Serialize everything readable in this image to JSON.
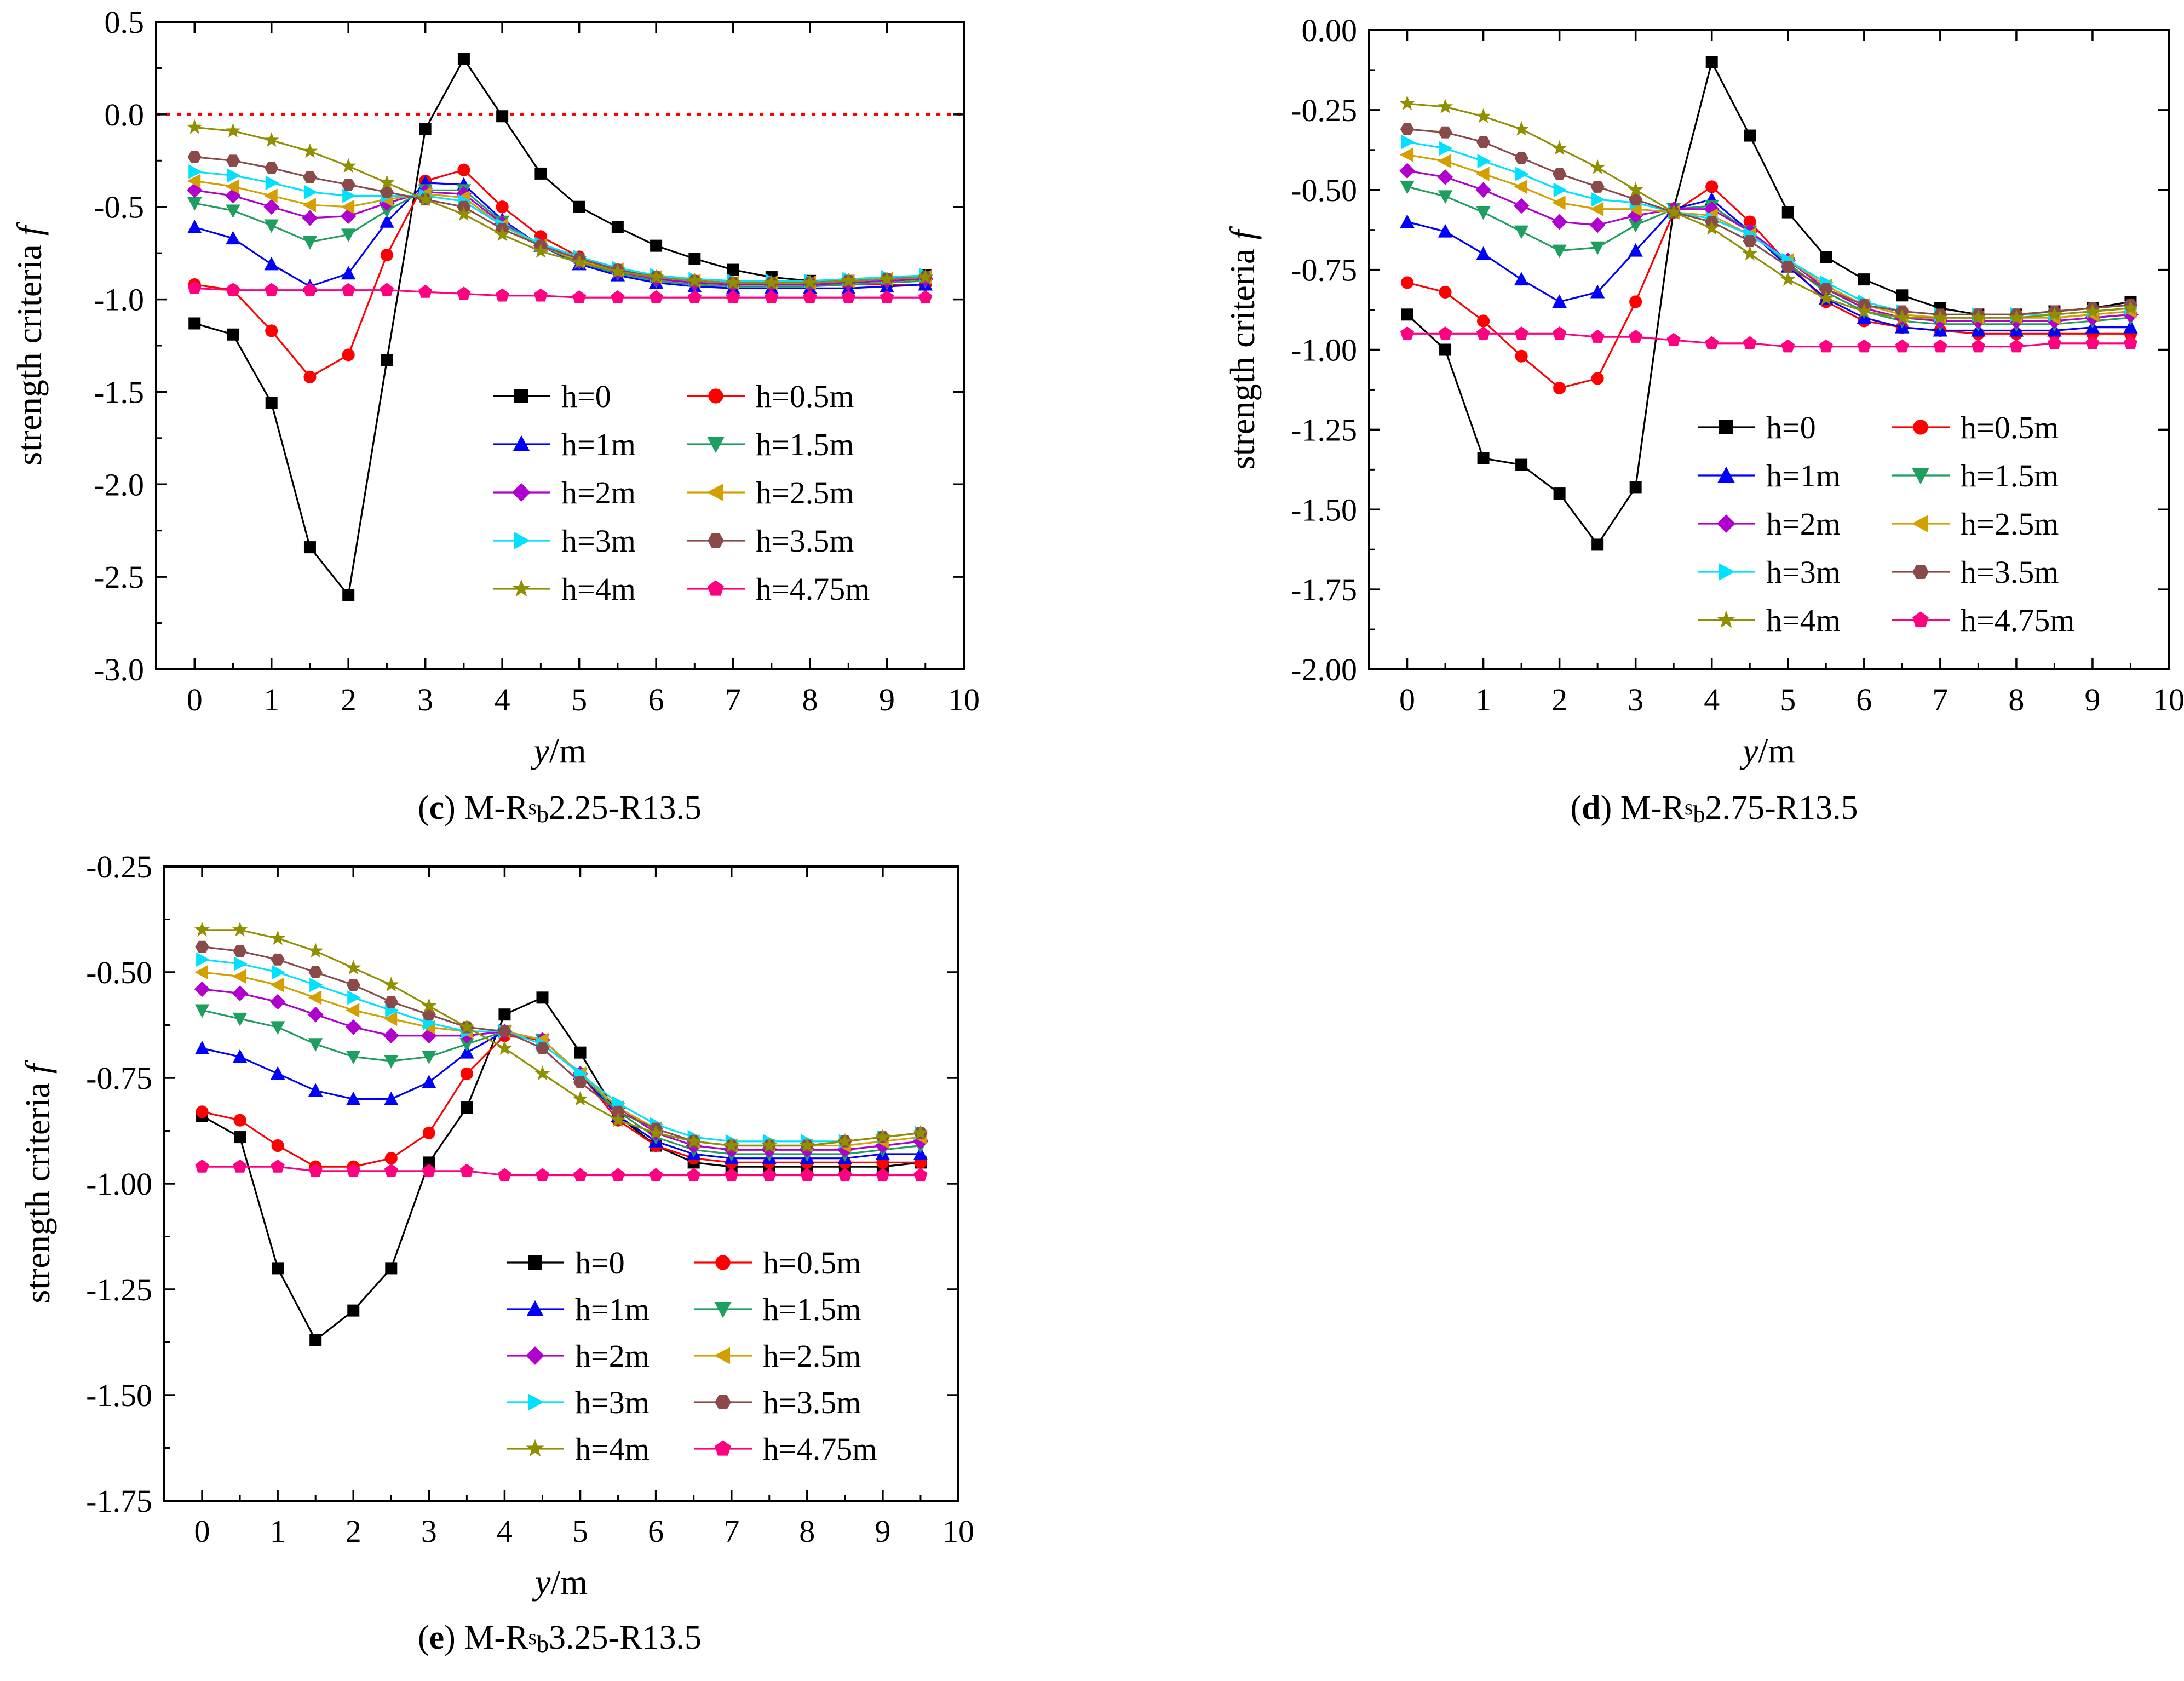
{
  "figure": {
    "panels": [
      {
        "letter": "c",
        "prefix": "M-R",
        "sup": "s",
        "sub": "b",
        "suffix": "2.25-R13.5"
      },
      {
        "letter": "d",
        "prefix": "M-R",
        "sup": "s",
        "sub": "b",
        "suffix": "2.75-R13.5"
      },
      {
        "letter": "e",
        "prefix": "M-R",
        "sup": "s",
        "sub": "b",
        "suffix": "3.25-R13.5"
      }
    ]
  },
  "chart_data": [
    {
      "type": "line",
      "title": "(c) M-Rsb2.25-R13.5",
      "xlabel_italic": "y",
      "xlabel_unit": "/m",
      "ylabel": "strength criteria",
      "ylabel_italic": "f",
      "xlim": [
        -0.5,
        10
      ],
      "ylim": [
        -3.0,
        0.5
      ],
      "xticks": [
        0,
        1,
        2,
        3,
        4,
        5,
        6,
        7,
        8,
        9,
        10
      ],
      "xtick_labels": [
        "0",
        "1",
        "2",
        "3",
        "4",
        "5",
        "6",
        "7",
        "8",
        "9",
        "10"
      ],
      "yticks": [
        0.5,
        0.0,
        -0.5,
        -1.0,
        -1.5,
        -2.0,
        -2.5,
        -3.0
      ],
      "ytick_labels": [
        "0.5",
        "0.0",
        "-0.5",
        "-1.0",
        "-1.5",
        "-2.0",
        "-2.5",
        "-3.0"
      ],
      "refline_y": 0,
      "x": [
        0,
        0.5,
        1,
        1.5,
        2,
        2.5,
        3,
        3.5,
        4,
        4.5,
        5,
        5.5,
        6,
        6.5,
        7,
        7.5,
        8,
        8.5,
        9,
        9.5
      ],
      "series": [
        {
          "name": "h=0",
          "color": "#000000",
          "marker": "square",
          "values": [
            -1.13,
            -1.19,
            -1.56,
            -2.34,
            -2.6,
            -1.33,
            -0.08,
            0.3,
            -0.01,
            -0.32,
            -0.5,
            -0.61,
            -0.71,
            -0.78,
            -0.84,
            -0.88,
            -0.9,
            -0.9,
            -0.89,
            -0.87
          ]
        },
        {
          "name": "h=0.5m",
          "color": "#ff0000",
          "marker": "circle",
          "values": [
            -0.92,
            -0.95,
            -1.17,
            -1.42,
            -1.3,
            -0.76,
            -0.36,
            -0.3,
            -0.5,
            -0.66,
            -0.77,
            -0.84,
            -0.88,
            -0.9,
            -0.91,
            -0.92,
            -0.92,
            -0.92,
            -0.92,
            -0.92
          ]
        },
        {
          "name": "h=1m",
          "color": "#0000ff",
          "marker": "triangle-up",
          "values": [
            -0.61,
            -0.67,
            -0.81,
            -0.93,
            -0.86,
            -0.58,
            -0.37,
            -0.38,
            -0.57,
            -0.71,
            -0.81,
            -0.87,
            -0.91,
            -0.93,
            -0.94,
            -0.94,
            -0.94,
            -0.94,
            -0.93,
            -0.92
          ]
        },
        {
          "name": "h=1.5m",
          "color": "#1f9f5f",
          "marker": "triangle-down",
          "values": [
            -0.48,
            -0.52,
            -0.6,
            -0.69,
            -0.65,
            -0.52,
            -0.41,
            -0.41,
            -0.58,
            -0.71,
            -0.8,
            -0.86,
            -0.9,
            -0.92,
            -0.93,
            -0.93,
            -0.93,
            -0.92,
            -0.91,
            -0.9
          ]
        },
        {
          "name": "h=2m",
          "color": "#b000d0",
          "marker": "diamond",
          "values": [
            -0.41,
            -0.44,
            -0.5,
            -0.56,
            -0.55,
            -0.48,
            -0.42,
            -0.43,
            -0.59,
            -0.71,
            -0.79,
            -0.85,
            -0.89,
            -0.91,
            -0.92,
            -0.92,
            -0.92,
            -0.91,
            -0.9,
            -0.89
          ]
        },
        {
          "name": "h=2.5m",
          "color": "#d4a000",
          "marker": "triangle-left",
          "values": [
            -0.36,
            -0.39,
            -0.44,
            -0.49,
            -0.5,
            -0.46,
            -0.43,
            -0.45,
            -0.6,
            -0.71,
            -0.79,
            -0.84,
            -0.88,
            -0.9,
            -0.91,
            -0.91,
            -0.91,
            -0.9,
            -0.89,
            -0.88
          ]
        },
        {
          "name": "h=3m",
          "color": "#00e0ff",
          "marker": "triangle-right",
          "values": [
            -0.31,
            -0.33,
            -0.37,
            -0.42,
            -0.44,
            -0.44,
            -0.44,
            -0.47,
            -0.6,
            -0.7,
            -0.77,
            -0.83,
            -0.87,
            -0.89,
            -0.9,
            -0.9,
            -0.9,
            -0.89,
            -0.88,
            -0.87
          ]
        },
        {
          "name": "h=3.5m",
          "color": "#8b4a4a",
          "marker": "hexagon",
          "values": [
            -0.23,
            -0.25,
            -0.29,
            -0.34,
            -0.38,
            -0.42,
            -0.46,
            -0.5,
            -0.62,
            -0.71,
            -0.78,
            -0.84,
            -0.88,
            -0.9,
            -0.91,
            -0.91,
            -0.91,
            -0.9,
            -0.89,
            -0.88
          ]
        },
        {
          "name": "h=4m",
          "color": "#8f8f00",
          "marker": "star",
          "values": [
            -0.07,
            -0.09,
            -0.14,
            -0.2,
            -0.28,
            -0.37,
            -0.46,
            -0.54,
            -0.65,
            -0.74,
            -0.8,
            -0.85,
            -0.88,
            -0.9,
            -0.91,
            -0.91,
            -0.91,
            -0.9,
            -0.89,
            -0.88
          ]
        },
        {
          "name": "h=4.75m",
          "color": "#ff0080",
          "marker": "pentagon",
          "values": [
            -0.94,
            -0.95,
            -0.95,
            -0.95,
            -0.95,
            -0.95,
            -0.96,
            -0.97,
            -0.98,
            -0.98,
            -0.99,
            -0.99,
            -0.99,
            -0.99,
            -0.99,
            -0.99,
            -0.99,
            -0.99,
            -0.99,
            -0.99
          ]
        }
      ]
    },
    {
      "type": "line",
      "title": "(d) M-Rsb2.75-R13.5",
      "xlabel_italic": "y",
      "xlabel_unit": "/m",
      "ylabel": "strength criteria",
      "ylabel_italic": "f",
      "xlim": [
        -0.5,
        10
      ],
      "ylim": [
        -2.0,
        0.0
      ],
      "xticks": [
        0,
        1,
        2,
        3,
        4,
        5,
        6,
        7,
        8,
        9,
        10
      ],
      "xtick_labels": [
        "0",
        "1",
        "2",
        "3",
        "4",
        "5",
        "6",
        "7",
        "8",
        "9",
        "10"
      ],
      "yticks": [
        0.0,
        -0.25,
        -0.5,
        -0.75,
        -1.0,
        -1.25,
        -1.5,
        -1.75,
        -2.0
      ],
      "ytick_labels": [
        "0.00",
        "-0.25",
        "-0.50",
        "-0.75",
        "-1.00",
        "-1.25",
        "-1.50",
        "-1.75",
        "-2.00"
      ],
      "x": [
        0,
        0.5,
        1,
        1.5,
        2,
        2.5,
        3,
        3.5,
        4,
        4.5,
        5,
        5.5,
        6,
        6.5,
        7,
        7.5,
        8,
        8.5,
        9,
        9.5
      ],
      "series": [
        {
          "name": "h=0",
          "color": "#000000",
          "marker": "square",
          "values": [
            -0.89,
            -1.0,
            -1.34,
            -1.36,
            -1.45,
            -1.61,
            -1.43,
            -0.56,
            -0.1,
            -0.33,
            -0.57,
            -0.71,
            -0.78,
            -0.83,
            -0.87,
            -0.89,
            -0.89,
            -0.88,
            -0.87,
            -0.85
          ]
        },
        {
          "name": "h=0.5m",
          "color": "#ff0000",
          "marker": "circle",
          "values": [
            -0.79,
            -0.82,
            -0.91,
            -1.02,
            -1.12,
            -1.09,
            -0.85,
            -0.57,
            -0.49,
            -0.6,
            -0.73,
            -0.85,
            -0.91,
            -0.93,
            -0.94,
            -0.95,
            -0.95,
            -0.95,
            -0.95,
            -0.95
          ]
        },
        {
          "name": "h=1m",
          "color": "#0000ff",
          "marker": "triangle-up",
          "values": [
            -0.6,
            -0.63,
            -0.7,
            -0.78,
            -0.85,
            -0.82,
            -0.69,
            -0.56,
            -0.53,
            -0.63,
            -0.74,
            -0.84,
            -0.9,
            -0.93,
            -0.94,
            -0.94,
            -0.94,
            -0.94,
            -0.93,
            -0.93
          ]
        },
        {
          "name": "h=1.5m",
          "color": "#1f9f5f",
          "marker": "triangle-down",
          "values": [
            -0.49,
            -0.52,
            -0.57,
            -0.63,
            -0.69,
            -0.68,
            -0.61,
            -0.56,
            -0.55,
            -0.63,
            -0.73,
            -0.82,
            -0.88,
            -0.91,
            -0.92,
            -0.92,
            -0.92,
            -0.92,
            -0.91,
            -0.9
          ]
        },
        {
          "name": "h=2m",
          "color": "#b000d0",
          "marker": "diamond",
          "values": [
            -0.44,
            -0.46,
            -0.5,
            -0.55,
            -0.6,
            -0.61,
            -0.58,
            -0.56,
            -0.56,
            -0.63,
            -0.72,
            -0.81,
            -0.87,
            -0.9,
            -0.91,
            -0.91,
            -0.91,
            -0.91,
            -0.9,
            -0.89
          ]
        },
        {
          "name": "h=2.5m",
          "color": "#d4a000",
          "marker": "triangle-left",
          "values": [
            -0.39,
            -0.41,
            -0.45,
            -0.49,
            -0.54,
            -0.56,
            -0.56,
            -0.57,
            -0.58,
            -0.64,
            -0.72,
            -0.8,
            -0.86,
            -0.89,
            -0.9,
            -0.9,
            -0.9,
            -0.9,
            -0.89,
            -0.88
          ]
        },
        {
          "name": "h=3m",
          "color": "#00e0ff",
          "marker": "triangle-right",
          "values": [
            -0.35,
            -0.37,
            -0.41,
            -0.45,
            -0.5,
            -0.53,
            -0.54,
            -0.57,
            -0.59,
            -0.64,
            -0.72,
            -0.79,
            -0.85,
            -0.88,
            -0.89,
            -0.89,
            -0.89,
            -0.89,
            -0.88,
            -0.87
          ]
        },
        {
          "name": "h=3.5m",
          "color": "#8b4a4a",
          "marker": "hexagon",
          "values": [
            -0.31,
            -0.32,
            -0.35,
            -0.4,
            -0.45,
            -0.49,
            -0.53,
            -0.57,
            -0.6,
            -0.66,
            -0.74,
            -0.81,
            -0.86,
            -0.88,
            -0.89,
            -0.89,
            -0.89,
            -0.88,
            -0.87,
            -0.86
          ]
        },
        {
          "name": "h=4m",
          "color": "#8f8f00",
          "marker": "star",
          "values": [
            -0.23,
            -0.24,
            -0.27,
            -0.31,
            -0.37,
            -0.43,
            -0.5,
            -0.57,
            -0.62,
            -0.7,
            -0.78,
            -0.84,
            -0.88,
            -0.9,
            -0.9,
            -0.9,
            -0.9,
            -0.89,
            -0.88,
            -0.87
          ]
        },
        {
          "name": "h=4.75m",
          "color": "#ff0080",
          "marker": "pentagon",
          "values": [
            -0.95,
            -0.95,
            -0.95,
            -0.95,
            -0.95,
            -0.96,
            -0.96,
            -0.97,
            -0.98,
            -0.98,
            -0.99,
            -0.99,
            -0.99,
            -0.99,
            -0.99,
            -0.99,
            -0.99,
            -0.98,
            -0.98,
            -0.98
          ]
        }
      ]
    },
    {
      "type": "line",
      "title": "(e) M-Rsb3.25-R13.5",
      "xlabel_italic": "y",
      "xlabel_unit": "/m",
      "ylabel": "strength criteria",
      "ylabel_italic": "f",
      "xlim": [
        -0.5,
        10
      ],
      "ylim": [
        -1.75,
        -0.25
      ],
      "xticks": [
        0,
        1,
        2,
        3,
        4,
        5,
        6,
        7,
        8,
        9,
        10
      ],
      "xtick_labels": [
        "0",
        "1",
        "2",
        "3",
        "4",
        "5",
        "6",
        "7",
        "8",
        "9",
        "10"
      ],
      "yticks": [
        -0.25,
        -0.5,
        -0.75,
        -1.0,
        -1.25,
        -1.5,
        -1.75
      ],
      "ytick_labels": [
        "-0.25",
        "-0.50",
        "-0.75",
        "-1.00",
        "-1.25",
        "-1.50",
        "-1.75"
      ],
      "x": [
        0,
        0.5,
        1,
        1.5,
        2,
        2.5,
        3,
        3.5,
        4,
        4.5,
        5,
        5.5,
        6,
        6.5,
        7,
        7.5,
        8,
        8.5,
        9,
        9.5
      ],
      "series": [
        {
          "name": "h=0",
          "color": "#000000",
          "marker": "square",
          "values": [
            -0.84,
            -0.89,
            -1.2,
            -1.37,
            -1.3,
            -1.2,
            -0.95,
            -0.82,
            -0.6,
            -0.56,
            -0.69,
            -0.84,
            -0.91,
            -0.95,
            -0.96,
            -0.96,
            -0.96,
            -0.96,
            -0.96,
            -0.95
          ]
        },
        {
          "name": "h=0.5m",
          "color": "#ff0000",
          "marker": "circle",
          "values": [
            -0.83,
            -0.85,
            -0.91,
            -0.96,
            -0.96,
            -0.94,
            -0.88,
            -0.74,
            -0.65,
            -0.66,
            -0.74,
            -0.85,
            -0.91,
            -0.94,
            -0.95,
            -0.95,
            -0.95,
            -0.95,
            -0.95,
            -0.95
          ]
        },
        {
          "name": "h=1m",
          "color": "#0000ff",
          "marker": "triangle-up",
          "values": [
            -0.68,
            -0.7,
            -0.74,
            -0.78,
            -0.8,
            -0.8,
            -0.76,
            -0.69,
            -0.64,
            -0.66,
            -0.74,
            -0.84,
            -0.9,
            -0.93,
            -0.94,
            -0.94,
            -0.94,
            -0.94,
            -0.93,
            -0.93
          ]
        },
        {
          "name": "h=1.5m",
          "color": "#1f9f5f",
          "marker": "triangle-down",
          "values": [
            -0.59,
            -0.61,
            -0.63,
            -0.67,
            -0.7,
            -0.71,
            -0.7,
            -0.67,
            -0.64,
            -0.66,
            -0.74,
            -0.83,
            -0.89,
            -0.92,
            -0.93,
            -0.93,
            -0.93,
            -0.93,
            -0.92,
            -0.91
          ]
        },
        {
          "name": "h=2m",
          "color": "#b000d0",
          "marker": "diamond",
          "values": [
            -0.54,
            -0.55,
            -0.57,
            -0.6,
            -0.63,
            -0.65,
            -0.65,
            -0.65,
            -0.64,
            -0.66,
            -0.74,
            -0.82,
            -0.88,
            -0.91,
            -0.92,
            -0.92,
            -0.92,
            -0.92,
            -0.91,
            -0.9
          ]
        },
        {
          "name": "h=2.5m",
          "color": "#d4a000",
          "marker": "triangle-left",
          "values": [
            -0.5,
            -0.51,
            -0.53,
            -0.56,
            -0.59,
            -0.61,
            -0.63,
            -0.64,
            -0.64,
            -0.66,
            -0.74,
            -0.82,
            -0.87,
            -0.9,
            -0.91,
            -0.91,
            -0.91,
            -0.91,
            -0.9,
            -0.89
          ]
        },
        {
          "name": "h=3m",
          "color": "#00e0ff",
          "marker": "triangle-right",
          "values": [
            -0.47,
            -0.48,
            -0.5,
            -0.53,
            -0.56,
            -0.59,
            -0.62,
            -0.64,
            -0.64,
            -0.67,
            -0.74,
            -0.81,
            -0.86,
            -0.89,
            -0.9,
            -0.9,
            -0.9,
            -0.9,
            -0.89,
            -0.88
          ]
        },
        {
          "name": "h=3.5m",
          "color": "#8b4a4a",
          "marker": "hexagon",
          "values": [
            -0.44,
            -0.45,
            -0.47,
            -0.5,
            -0.53,
            -0.57,
            -0.6,
            -0.63,
            -0.64,
            -0.68,
            -0.76,
            -0.83,
            -0.87,
            -0.9,
            -0.91,
            -0.91,
            -0.91,
            -0.9,
            -0.89,
            -0.88
          ]
        },
        {
          "name": "h=4m",
          "color": "#8f8f00",
          "marker": "star",
          "values": [
            -0.4,
            -0.4,
            -0.42,
            -0.45,
            -0.49,
            -0.53,
            -0.58,
            -0.63,
            -0.68,
            -0.74,
            -0.8,
            -0.85,
            -0.88,
            -0.9,
            -0.91,
            -0.91,
            -0.91,
            -0.9,
            -0.89,
            -0.88
          ]
        },
        {
          "name": "h=4.75m",
          "color": "#ff0080",
          "marker": "pentagon",
          "values": [
            -0.96,
            -0.96,
            -0.96,
            -0.97,
            -0.97,
            -0.97,
            -0.97,
            -0.97,
            -0.98,
            -0.98,
            -0.98,
            -0.98,
            -0.98,
            -0.98,
            -0.98,
            -0.98,
            -0.98,
            -0.98,
            -0.98,
            -0.98
          ]
        }
      ]
    }
  ]
}
